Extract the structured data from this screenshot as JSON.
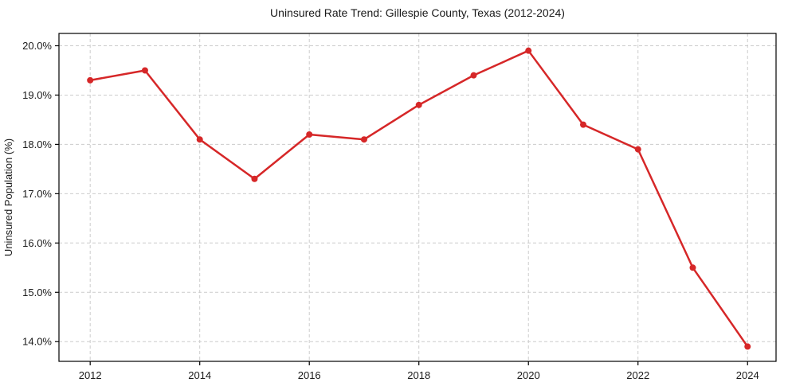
{
  "chart_data": {
    "type": "line",
    "title": "Uninsured Rate Trend: Gillespie County, Texas (2012-2024)",
    "xlabel": "",
    "ylabel": "Uninsured Population (%)",
    "x": [
      2012,
      2013,
      2014,
      2015,
      2016,
      2017,
      2018,
      2019,
      2020,
      2021,
      2022,
      2023,
      2024
    ],
    "series": [
      {
        "name": "Uninsured Population (%)",
        "values": [
          19.3,
          19.5,
          18.1,
          17.3,
          18.2,
          18.1,
          18.8,
          19.4,
          19.9,
          18.4,
          17.9,
          15.5,
          13.9
        ],
        "color": "#d62728",
        "marker": "circle"
      }
    ],
    "xlim": [
      2011.43,
      2024.52
    ],
    "ylim": [
      13.6,
      20.25
    ],
    "x_ticks": [
      2012,
      2014,
      2016,
      2018,
      2020,
      2022,
      2024
    ],
    "x_tick_labels": [
      "2012",
      "2014",
      "2016",
      "2018",
      "2020",
      "2022",
      "2024"
    ],
    "y_ticks": [
      14,
      15,
      16,
      17,
      18,
      19,
      20
    ],
    "y_tick_labels": [
      "14.0%",
      "15.0%",
      "16.0%",
      "17.0%",
      "18.0%",
      "19.0%",
      "20.0%"
    ],
    "grid": "dashed",
    "grid_color": "#cccccc",
    "axis_color": "#000000",
    "text_color": "#1a1a1a",
    "legend_position": "none"
  }
}
